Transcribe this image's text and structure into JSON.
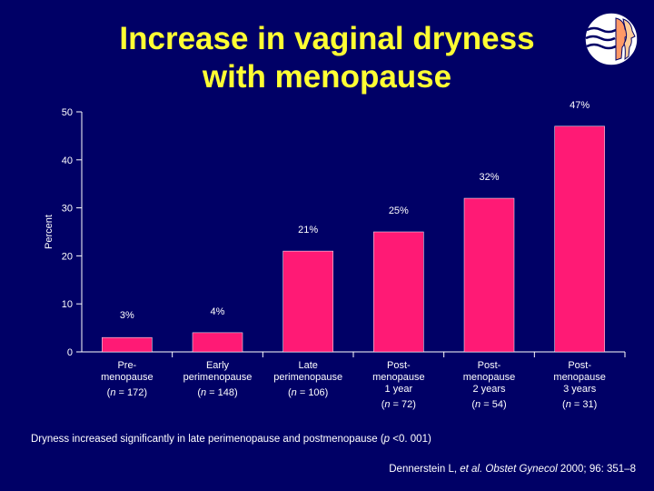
{
  "title_line1": "Increase in vaginal dryness",
  "title_line2": "with menopause",
  "logo_icon": "profile-heads-logo-icon",
  "chart_data": {
    "type": "bar",
    "ylabel": "Percent",
    "ylim": [
      0,
      50
    ],
    "yticks": [
      0,
      10,
      20,
      30,
      40,
      50
    ],
    "bar_color": "#ff1a75",
    "categories": [
      [
        "Pre-",
        "menopause"
      ],
      [
        "Early",
        "perimenopause"
      ],
      [
        "Late",
        "perimenopause"
      ],
      [
        "Post-",
        "menopause",
        "1 year"
      ],
      [
        "Post-",
        "menopause",
        "2 years"
      ],
      [
        "Post-",
        "menopause",
        "3 years"
      ]
    ],
    "n_labels": [
      "(n = 172)",
      "(n = 148)",
      "(n = 106)",
      "(n = 72)",
      "(n = 54)",
      "(n = 31)"
    ],
    "values": [
      3,
      4,
      21,
      25,
      32,
      47
    ],
    "value_labels": [
      "3%",
      "4%",
      "21%",
      "25%",
      "32%",
      "47%"
    ]
  },
  "footnote": {
    "pre": "Dryness increased significantly in late perimenopause and postmenopause (",
    "p": "p",
    "post": " <0. 001)"
  },
  "citation": {
    "authors": "Dennerstein L, ",
    "etal": "et al.",
    "journal": " Obstet Gynecol",
    "rest": " 2000; 96: 351–8"
  }
}
